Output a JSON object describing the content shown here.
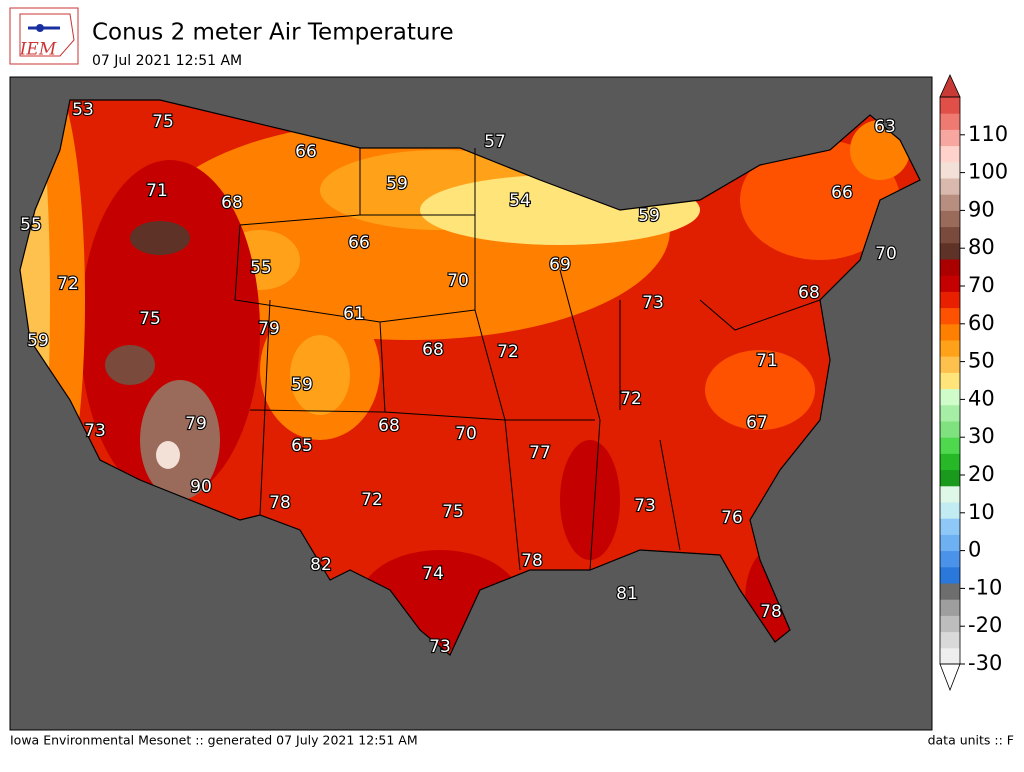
{
  "logo": "IEM",
  "header": {
    "title": "Conus 2 meter Air Temperature",
    "subtitle": "07 Jul 2021 12:51 AM"
  },
  "map_labels": [
    53,
    75,
    66,
    57,
    63,
    59,
    71,
    68,
    54,
    66,
    59,
    55,
    66,
    55,
    69,
    70,
    72,
    70,
    68,
    73,
    75,
    61,
    79,
    59,
    68,
    72,
    71,
    59,
    72,
    79,
    68,
    70,
    67,
    73,
    65,
    77,
    90,
    78,
    72,
    75,
    73,
    76,
    82,
    78,
    74,
    81,
    78,
    73
  ],
  "colorbar": {
    "lim": [
      -30,
      120
    ],
    "ticks": [
      -30,
      -20,
      -10,
      0,
      10,
      20,
      30,
      40,
      50,
      60,
      70,
      80,
      90,
      100,
      110
    ],
    "colors": [
      "#eeeeee",
      "#d9d9d9",
      "#bdbdbd",
      "#9e9e9e",
      "#6e6e6e",
      "#2a78dc",
      "#4a92ea",
      "#6eb1f3",
      "#8ec8f7",
      "#c2ebf2",
      "#dff7e6",
      "#199a1d",
      "#26b826",
      "#4dd84d",
      "#7fe27f",
      "#a6eea6",
      "#cffcc8",
      "#ffe47a",
      "#ffc14d",
      "#ffa21a",
      "#ff7f00",
      "#ff5200",
      "#e82000",
      "#c50000",
      "#aa0000",
      "#5e3226",
      "#7a4a3c",
      "#9a6a5a",
      "#b88e80",
      "#d9b9ae",
      "#f3e0d6",
      "#ffd2cc",
      "#f7a7a0",
      "#ef7a72",
      "#e04f48"
    ],
    "extend_low": "#ffffff",
    "extend_high": "#c83a35"
  },
  "footer": {
    "left": "Iowa Environmental Mesonet :: generated 07 July 2021 12:51 AM",
    "right": "data units :: F"
  }
}
